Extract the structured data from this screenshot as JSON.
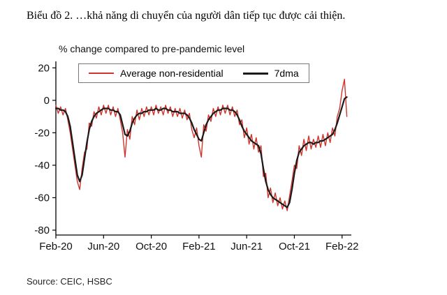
{
  "page": {
    "title": "Biểu đồ 2. …khả năng di chuyển của người dân tiếp tục được cải thiện.",
    "source": "Source:  CEIC, HSBC"
  },
  "chart_data": {
    "type": "line",
    "subtitle": "% change compared to pre-pandemic level",
    "legend": [
      {
        "label": "Average non-residential",
        "color": "#d0342c"
      },
      {
        "label": "7dma",
        "color": "#1a1a1a"
      }
    ],
    "x_tick_labels": [
      "Feb-20",
      "Jun-20",
      "Oct-20",
      "Feb-21",
      "Jun-21",
      "Oct-21",
      "Feb-22"
    ],
    "x_tick_months": [
      0,
      4,
      8,
      12,
      16,
      20,
      24
    ],
    "y_ticks": [
      20,
      0,
      -20,
      -40,
      -60,
      -80
    ],
    "ylim": [
      -83,
      24
    ],
    "xlim": [
      0,
      24.6
    ],
    "x_unit": "months since Feb-2020",
    "x_start": 0,
    "x_step": 0.2,
    "series": [
      {
        "name": "Average non-residential",
        "color": "#d0342c",
        "width": 1.4,
        "values": [
          -3,
          -8,
          -4,
          -9,
          -5,
          -12,
          -20,
          -30,
          -40,
          -50,
          -55,
          -42,
          -32,
          -30,
          -14,
          -16,
          -7,
          -11,
          -4,
          -9,
          -3,
          -8,
          -3,
          -9,
          -4,
          -10,
          -5,
          -12,
          -20,
          -35,
          -18,
          -24,
          -10,
          -15,
          -6,
          -12,
          -5,
          -10,
          -4,
          -9,
          -4,
          -9,
          -3,
          -8,
          -4,
          -9,
          -3,
          -8,
          -4,
          -10,
          -5,
          -10,
          -5,
          -11,
          -6,
          -12,
          -8,
          -18,
          -23,
          -17,
          -28,
          -35,
          -15,
          -19,
          -9,
          -13,
          -5,
          -10,
          -4,
          -9,
          -3,
          -8,
          -3,
          -9,
          -4,
          -10,
          -6,
          -15,
          -12,
          -23,
          -17,
          -27,
          -21,
          -30,
          -23,
          -32,
          -28,
          -47,
          -45,
          -60,
          -54,
          -63,
          -57,
          -65,
          -60,
          -67,
          -62,
          -68,
          -59,
          -50,
          -40,
          -42,
          -28,
          -34,
          -24,
          -31,
          -22,
          -30,
          -24,
          -29,
          -22,
          -29,
          -21,
          -28,
          -20,
          -26,
          -17,
          -22,
          -10,
          -5,
          6,
          13,
          -10
        ]
      },
      {
        "name": "7dma",
        "color": "#1a1a1a",
        "width": 2.2,
        "values": [
          -5,
          -5,
          -6,
          -6,
          -7,
          -10,
          -16,
          -26,
          -36,
          -46,
          -50,
          -46,
          -36,
          -26,
          -18,
          -13,
          -10,
          -8,
          -7,
          -6,
          -5,
          -5,
          -5,
          -6,
          -6,
          -7,
          -7,
          -9,
          -15,
          -21,
          -22,
          -19,
          -14,
          -11,
          -9,
          -8,
          -8,
          -7,
          -7,
          -6,
          -6,
          -6,
          -5,
          -6,
          -6,
          -5,
          -5,
          -6,
          -6,
          -7,
          -7,
          -7,
          -8,
          -8,
          -8,
          -9,
          -11,
          -14,
          -18,
          -21,
          -24,
          -25,
          -20,
          -15,
          -12,
          -10,
          -8,
          -7,
          -6,
          -6,
          -5,
          -5,
          -5,
          -6,
          -6,
          -7,
          -9,
          -12,
          -16,
          -19,
          -21,
          -23,
          -25,
          -26,
          -27,
          -28,
          -33,
          -42,
          -50,
          -55,
          -58,
          -60,
          -61,
          -62,
          -63,
          -64,
          -65,
          -66,
          -63,
          -55,
          -45,
          -37,
          -32,
          -30,
          -28,
          -27,
          -26,
          -26,
          -27,
          -26,
          -26,
          -25,
          -25,
          -24,
          -23,
          -22,
          -21,
          -18,
          -14,
          -9,
          -4,
          1,
          2
        ]
      }
    ]
  }
}
